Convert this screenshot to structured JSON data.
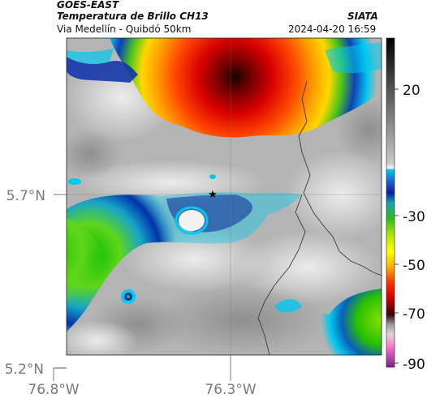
{
  "header": {
    "satellite": "GOES-EAST",
    "product": "Temperatura de Brillo CH13",
    "region": "Via Medellín - Quibdó 50km",
    "agency": "SIATA",
    "timestamp": "2024-04-20 16:59"
  },
  "map": {
    "lat_labels": [
      "5.7°N",
      "5.2°N"
    ],
    "lon_labels": [
      "76.8°W",
      "76.3°W"
    ],
    "marker": "star"
  },
  "colorbar": {
    "tick_labels": [
      "20",
      "-30",
      "-50",
      "-70",
      "-90"
    ]
  }
}
